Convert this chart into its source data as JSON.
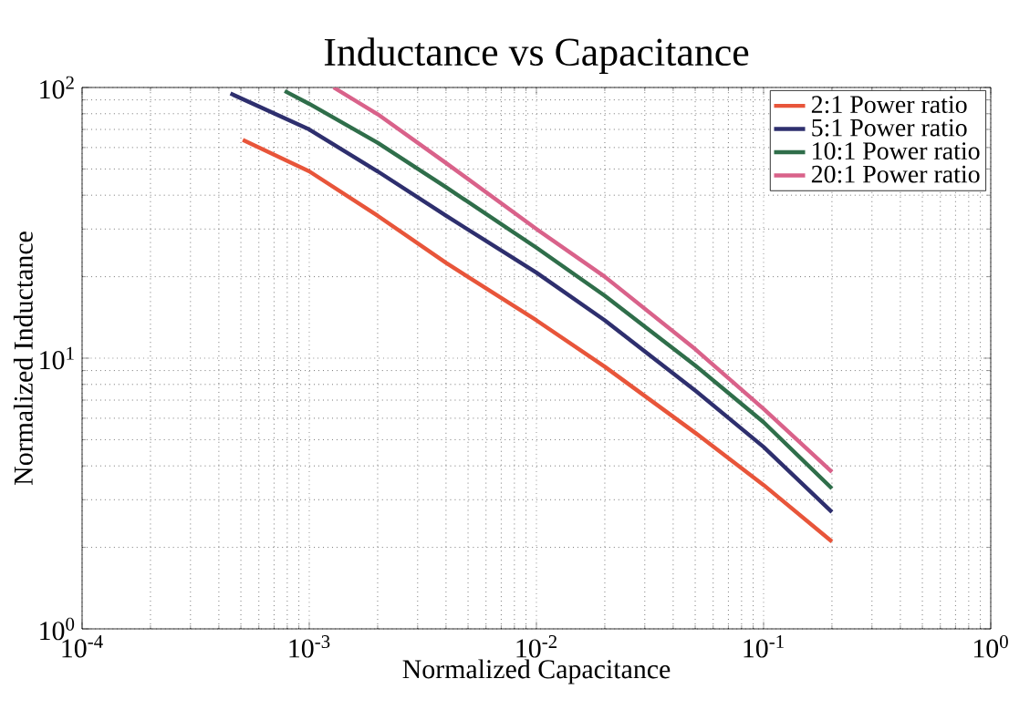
{
  "chart_data": {
    "type": "line",
    "title": "Inductance vs Capacitance",
    "xlabel": "Normalized Capacitance",
    "ylabel": "Normalized Inductance",
    "log": "xy",
    "grid": true,
    "legend": "top right",
    "line_style": "solid",
    "marker": "none",
    "xlim": [
      0.0001,
      1
    ],
    "ylim": [
      1,
      100
    ],
    "xticks": [
      {
        "value": 0.0001,
        "label": "10$^{-4}$"
      },
      {
        "value": 0.001,
        "label": "10$^{-3}$"
      },
      {
        "value": 0.01,
        "label": "10$^{-2}$"
      },
      {
        "value": 0.1,
        "label": "10$^{-1}$"
      },
      {
        "value": 1,
        "label": "10$^{0}$"
      }
    ],
    "yticks": [
      {
        "value": 1,
        "label": "10$^{0}$"
      },
      {
        "value": 10,
        "label": "10$^{1}$"
      },
      {
        "value": 100,
        "label": "10$^{2}$"
      }
    ],
    "series": [
      {
        "name": "2:1 Power ratio",
        "color": "#e8553a",
        "x": [
          0.00051,
          0.001,
          0.002,
          0.004,
          0.01,
          0.02,
          0.05,
          0.1,
          0.2
        ],
        "values": [
          64,
          49,
          33.6,
          22.5,
          13.8,
          9.3,
          5.3,
          3.4,
          2.1
        ]
      },
      {
        "name": "5:1 Power ratio",
        "color": "#2e2f6e",
        "x": [
          0.00045,
          0.001,
          0.002,
          0.004,
          0.01,
          0.02,
          0.05,
          0.1,
          0.2
        ],
        "values": [
          95,
          70,
          49,
          33.6,
          20.7,
          13.8,
          7.6,
          4.7,
          2.7
        ]
      },
      {
        "name": "10:1 Power ratio",
        "color": "#2f6e4a",
        "x": [
          0.00078,
          0.001,
          0.002,
          0.004,
          0.01,
          0.02,
          0.05,
          0.1,
          0.2
        ],
        "values": [
          97,
          87,
          62.5,
          42.8,
          25.6,
          17,
          9.4,
          5.8,
          3.3
        ]
      },
      {
        "name": "20:1 Power ratio",
        "color": "#d9628a",
        "x": [
          0.00128,
          0.002,
          0.004,
          0.01,
          0.02,
          0.05,
          0.1,
          0.2
        ],
        "values": [
          100,
          79.7,
          52.6,
          30,
          20,
          10.8,
          6.5,
          3.8
        ]
      }
    ]
  }
}
